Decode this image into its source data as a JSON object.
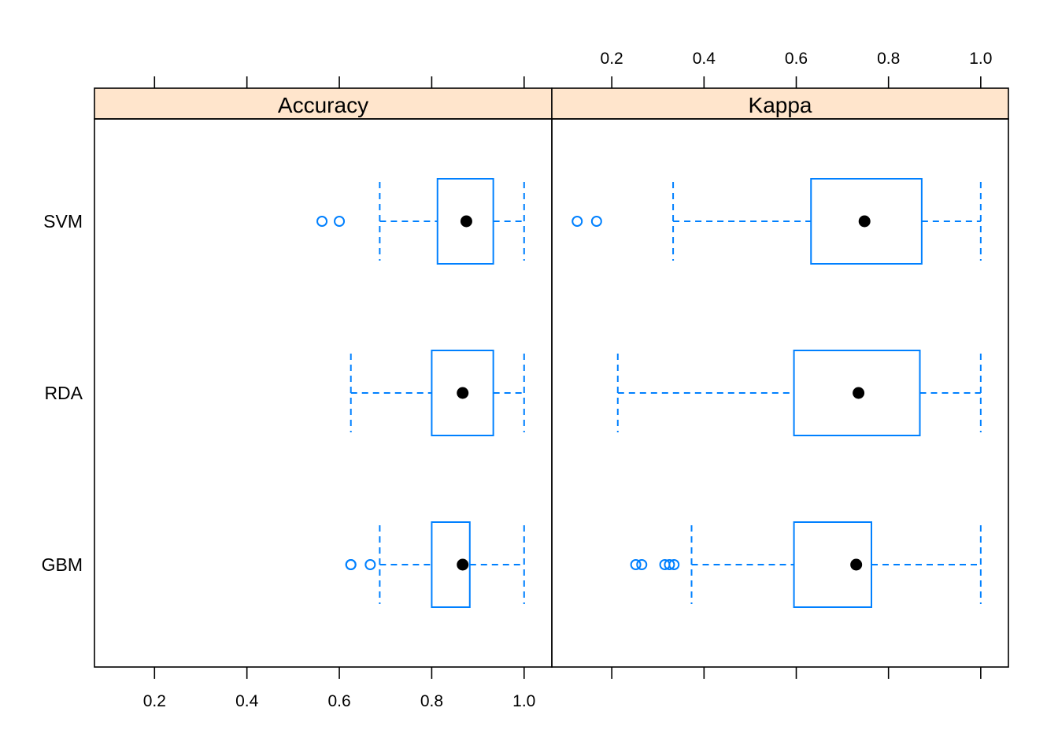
{
  "chart_data": {
    "type": "boxplot",
    "layout": "two panels side by side, bottom axis under left panel, top axis over right panel",
    "categories": [
      "GBM",
      "RDA",
      "SVM"
    ],
    "xlim": [
      0.07,
      1.06
    ],
    "ticks": [
      0.2,
      0.4,
      0.6,
      0.8,
      1.0
    ],
    "tick_labels": [
      "0.2",
      "0.4",
      "0.6",
      "0.8",
      "1.0"
    ],
    "colors": {
      "box": "#0080ff",
      "median": "#000000",
      "strip_bg": "#ffe5cc",
      "frame": "#000000"
    },
    "panels": [
      {
        "title": "Accuracy",
        "series": [
          {
            "name": "GBM",
            "whisker_low": 0.6875,
            "q1": 0.8,
            "median": 0.867,
            "q3": 0.8824,
            "whisker_high": 1.0,
            "outliers": [
              0.625,
              0.625,
              0.667
            ]
          },
          {
            "name": "RDA",
            "whisker_low": 0.625,
            "q1": 0.8,
            "median": 0.867,
            "q3": 0.9333,
            "whisker_high": 1.0,
            "outliers": []
          },
          {
            "name": "SVM",
            "whisker_low": 0.6875,
            "q1": 0.8125,
            "median": 0.875,
            "q3": 0.9333,
            "whisker_high": 1.0,
            "outliers": [
              0.5625,
              0.6
            ]
          }
        ]
      },
      {
        "title": "Kappa",
        "series": [
          {
            "name": "GBM",
            "whisker_low": 0.373,
            "q1": 0.595,
            "median": 0.73,
            "q3": 0.763,
            "whisker_high": 1.0,
            "outliers": [
              0.252,
              0.265,
              0.315,
              0.325,
              0.335
            ]
          },
          {
            "name": "RDA",
            "whisker_low": 0.213,
            "q1": 0.595,
            "median": 0.735,
            "q3": 0.868,
            "whisker_high": 1.0,
            "outliers": []
          },
          {
            "name": "SVM",
            "whisker_low": 0.333,
            "q1": 0.632,
            "median": 0.748,
            "q3": 0.872,
            "whisker_high": 1.0,
            "outliers": [
              0.125,
              0.167
            ]
          }
        ]
      }
    ]
  }
}
